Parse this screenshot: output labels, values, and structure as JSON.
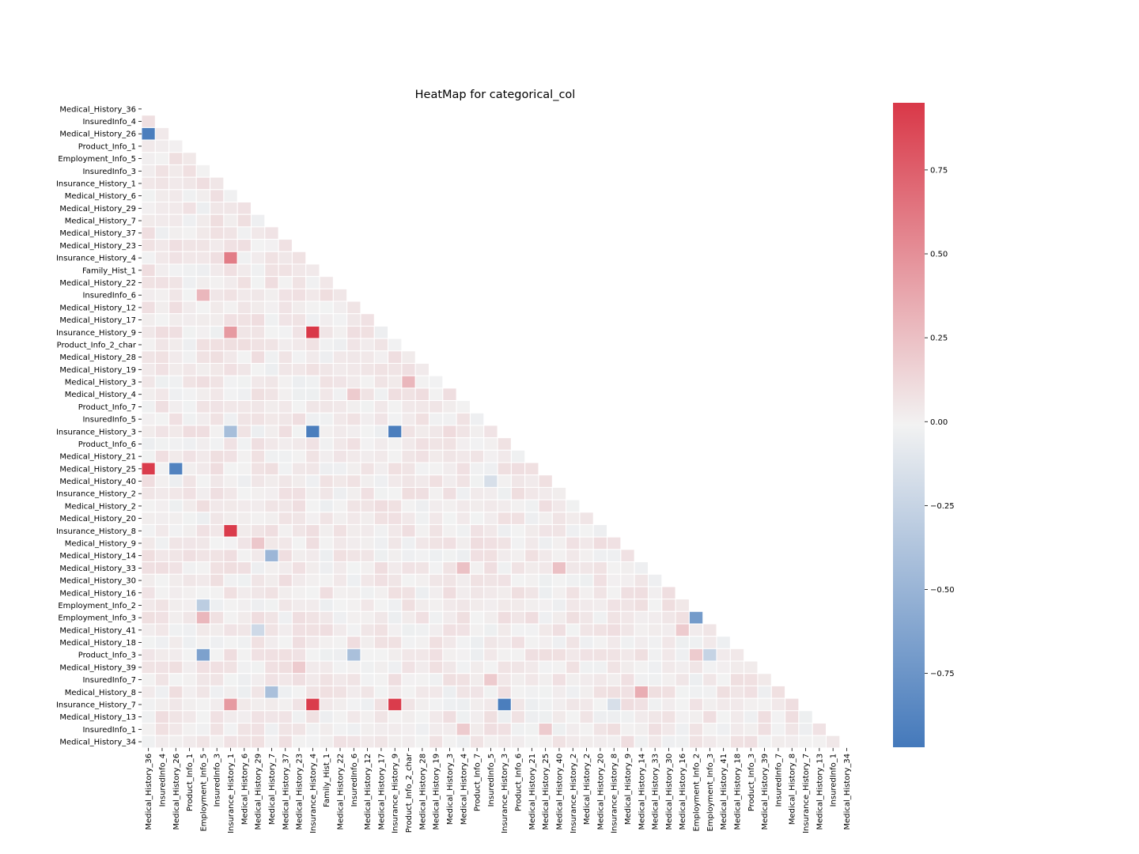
{
  "chart_data": {
    "type": "heatmap",
    "title": "HeatMap for categorical_col",
    "mask": "upper-triangle",
    "labels": [
      "Medical_History_36",
      "InsuredInfo_4",
      "Medical_History_26",
      "Product_Info_1",
      "Employment_Info_5",
      "InsuredInfo_3",
      "Insurance_History_1",
      "Medical_History_6",
      "Medical_History_29",
      "Medical_History_7",
      "Medical_History_37",
      "Medical_History_23",
      "Insurance_History_4",
      "Family_Hist_1",
      "Medical_History_22",
      "InsuredInfo_6",
      "Medical_History_12",
      "Medical_History_17",
      "Insurance_History_9",
      "Product_Info_2_char",
      "Medical_History_28",
      "Medical_History_19",
      "Medical_History_3",
      "Medical_History_4",
      "Product_Info_7",
      "InsuredInfo_5",
      "Insurance_History_3",
      "Product_Info_6",
      "Medical_History_21",
      "Medical_History_25",
      "Medical_History_40",
      "Insurance_History_2",
      "Medical_History_2",
      "Medical_History_20",
      "Insurance_History_8",
      "Medical_History_9",
      "Medical_History_14",
      "Medical_History_33",
      "Medical_History_30",
      "Medical_History_16",
      "Employment_Info_2",
      "Employment_Info_3",
      "Medical_History_41",
      "Medical_History_18",
      "Product_Info_3",
      "Medical_History_39",
      "InsuredInfo_7",
      "Medical_History_8",
      "Insurance_History_7",
      "Medical_History_13",
      "InsuredInfo_1",
      "Medical_History_34"
    ],
    "vmin": -0.97,
    "vmax": 0.95,
    "colorbar_ticks": [
      0.75,
      0.5,
      0.25,
      0.0,
      -0.25,
      -0.5,
      -0.75
    ],
    "colorbar_tick_labels": [
      "0.75",
      "0.50",
      "0.25",
      "0.00",
      "−0.25",
      "−0.50",
      "−0.75"
    ],
    "colormap": {
      "neg": "#4479bb",
      "mid": "#f2f2f2",
      "pos": "#d93848"
    },
    "gridlines": "white",
    "default_value": 0.03,
    "highlighted_correlations": [
      {
        "row": "Medical_History_26",
        "col": "Medical_History_36",
        "value": -0.93
      },
      {
        "row": "Medical_History_25",
        "col": "Medical_History_36",
        "value": 0.93
      },
      {
        "row": "Medical_History_25",
        "col": "Medical_History_26",
        "value": -0.9
      },
      {
        "row": "Insurance_History_4",
        "col": "Insurance_History_1",
        "value": 0.6
      },
      {
        "row": "InsuredInfo_6",
        "col": "Employment_Info_5",
        "value": 0.3
      },
      {
        "row": "Insurance_History_9",
        "col": "Insurance_History_1",
        "value": 0.45
      },
      {
        "row": "Insurance_History_9",
        "col": "Insurance_History_4",
        "value": 0.95
      },
      {
        "row": "Medical_History_3",
        "col": "Product_Info_2_char",
        "value": 0.3
      },
      {
        "row": "Medical_History_4",
        "col": "InsuredInfo_6",
        "value": 0.2
      },
      {
        "row": "Insurance_History_3",
        "col": "Insurance_History_1",
        "value": -0.42
      },
      {
        "row": "Insurance_History_3",
        "col": "Insurance_History_4",
        "value": -0.93
      },
      {
        "row": "Insurance_History_3",
        "col": "Insurance_History_9",
        "value": -0.93
      },
      {
        "row": "Insurance_History_3",
        "col": "Medical_History_3",
        "value": 0.12
      },
      {
        "row": "Medical_History_40",
        "col": "InsuredInfo_5",
        "value": -0.15
      },
      {
        "row": "Insurance_History_8",
        "col": "Insurance_History_1",
        "value": 0.93
      },
      {
        "row": "Medical_History_9",
        "col": "Medical_History_29",
        "value": 0.22
      },
      {
        "row": "Medical_History_14",
        "col": "Medical_History_7",
        "value": -0.48
      },
      {
        "row": "Medical_History_33",
        "col": "Medical_History_4",
        "value": 0.25
      },
      {
        "row": "Medical_History_33",
        "col": "Medical_History_40",
        "value": 0.25
      },
      {
        "row": "Employment_Info_2",
        "col": "Employment_Info_5",
        "value": -0.3
      },
      {
        "row": "Employment_Info_3",
        "col": "Employment_Info_5",
        "value": 0.3
      },
      {
        "row": "Employment_Info_3",
        "col": "Employment_Info_2",
        "value": -0.7
      },
      {
        "row": "Medical_History_41",
        "col": "Medical_History_29",
        "value": -0.2
      },
      {
        "row": "Medical_History_41",
        "col": "Medical_History_16",
        "value": 0.2
      },
      {
        "row": "Product_Info_3",
        "col": "Employment_Info_5",
        "value": -0.65
      },
      {
        "row": "Product_Info_3",
        "col": "InsuredInfo_6",
        "value": -0.4
      },
      {
        "row": "Product_Info_3",
        "col": "Employment_Info_2",
        "value": 0.2
      },
      {
        "row": "Product_Info_3",
        "col": "Employment_Info_3",
        "value": -0.25
      },
      {
        "row": "Medical_History_39",
        "col": "Medical_History_23",
        "value": 0.2
      },
      {
        "row": "InsuredInfo_7",
        "col": "InsuredInfo_5",
        "value": 0.2
      },
      {
        "row": "Medical_History_8",
        "col": "Medical_History_7",
        "value": -0.4
      },
      {
        "row": "Medical_History_8",
        "col": "Medical_History_14",
        "value": 0.35
      },
      {
        "row": "Insurance_History_7",
        "col": "Insurance_History_1",
        "value": 0.45
      },
      {
        "row": "Insurance_History_7",
        "col": "Insurance_History_4",
        "value": 0.93
      },
      {
        "row": "Insurance_History_7",
        "col": "Insurance_History_9",
        "value": 0.93
      },
      {
        "row": "Insurance_History_7",
        "col": "Insurance_History_3",
        "value": -0.93
      },
      {
        "row": "Insurance_History_7",
        "col": "Insurance_History_8",
        "value": -0.15
      },
      {
        "row": "InsuredInfo_1",
        "col": "Medical_History_4",
        "value": 0.2
      },
      {
        "row": "InsuredInfo_1",
        "col": "Medical_History_25",
        "value": 0.2
      }
    ]
  }
}
